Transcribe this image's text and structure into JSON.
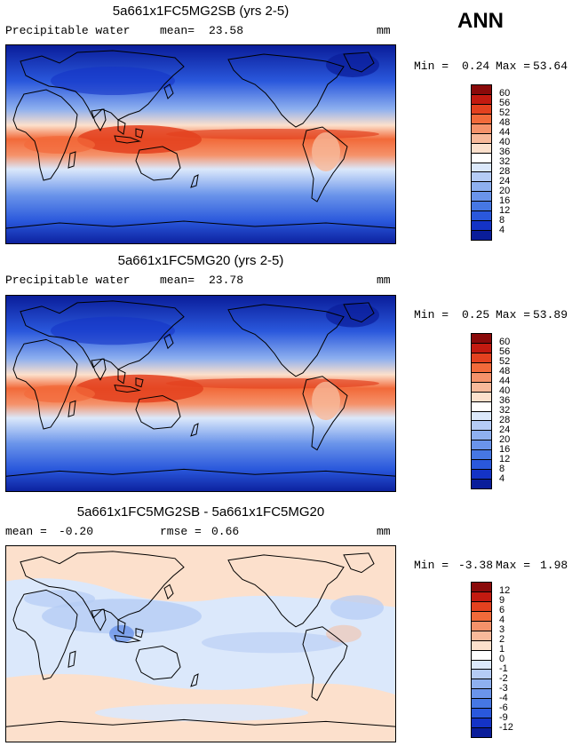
{
  "season": "ANN",
  "panels": [
    {
      "title": "5a661x1FC5MG2SB (yrs 2-5)",
      "variable": "Precipitable water",
      "mean_label": "mean=",
      "mean_value": "23.58",
      "units": "mm",
      "min_label": "Min =",
      "min_value": "0.24",
      "max_label": "Max =",
      "max_value": "53.64",
      "colorbar_ticks": [
        "60",
        "56",
        "52",
        "48",
        "44",
        "40",
        "36",
        "32",
        "28",
        "24",
        "20",
        "16",
        "12",
        "8",
        "4"
      ],
      "colorbar_colors": [
        "#8a0a0a",
        "#c21a10",
        "#e3411f",
        "#f26a3a",
        "#f5926a",
        "#f8b99a",
        "#fce0cc",
        "#ffffff",
        "#dbe8fb",
        "#b5ccf5",
        "#8eb0ef",
        "#6a94ea",
        "#4677e3",
        "#2a58dc",
        "#1433c6",
        "#0a1d9a"
      ]
    },
    {
      "title": "5a661x1FC5MG20 (yrs 2-5)",
      "variable": "Precipitable water",
      "mean_label": "mean=",
      "mean_value": "23.78",
      "units": "mm",
      "min_label": "Min =",
      "min_value": "0.25",
      "max_label": "Max =",
      "max_value": "53.89",
      "colorbar_ticks": [
        "60",
        "56",
        "52",
        "48",
        "44",
        "40",
        "36",
        "32",
        "28",
        "24",
        "20",
        "16",
        "12",
        "8",
        "4"
      ],
      "colorbar_colors": [
        "#8a0a0a",
        "#c21a10",
        "#e3411f",
        "#f26a3a",
        "#f5926a",
        "#f8b99a",
        "#fce0cc",
        "#ffffff",
        "#dbe8fb",
        "#b5ccf5",
        "#8eb0ef",
        "#6a94ea",
        "#4677e3",
        "#2a58dc",
        "#1433c6",
        "#0a1d9a"
      ]
    },
    {
      "title": "5a661x1FC5MG2SB - 5a661x1FC5MG20",
      "mean_label": "mean =",
      "mean_value": "-0.20",
      "rmse_label": "rmse =",
      "rmse_value": "0.66",
      "units": "mm",
      "min_label": "Min =",
      "min_value": "-3.38",
      "max_label": "Max =",
      "max_value": "1.98",
      "colorbar_ticks": [
        "12",
        "9",
        "6",
        "4",
        "3",
        "2",
        "1",
        "0",
        "-1",
        "-2",
        "-3",
        "-4",
        "-6",
        "-9",
        "-12"
      ],
      "colorbar_colors": [
        "#8a0a0a",
        "#c21a10",
        "#e3411f",
        "#f26a3a",
        "#f5926a",
        "#f8b99a",
        "#fce0cc",
        "#ffffff",
        "#dbe8fb",
        "#b5ccf5",
        "#8eb0ef",
        "#6a94ea",
        "#4677e3",
        "#2a58dc",
        "#1433c6",
        "#0a1d9a"
      ]
    }
  ]
}
